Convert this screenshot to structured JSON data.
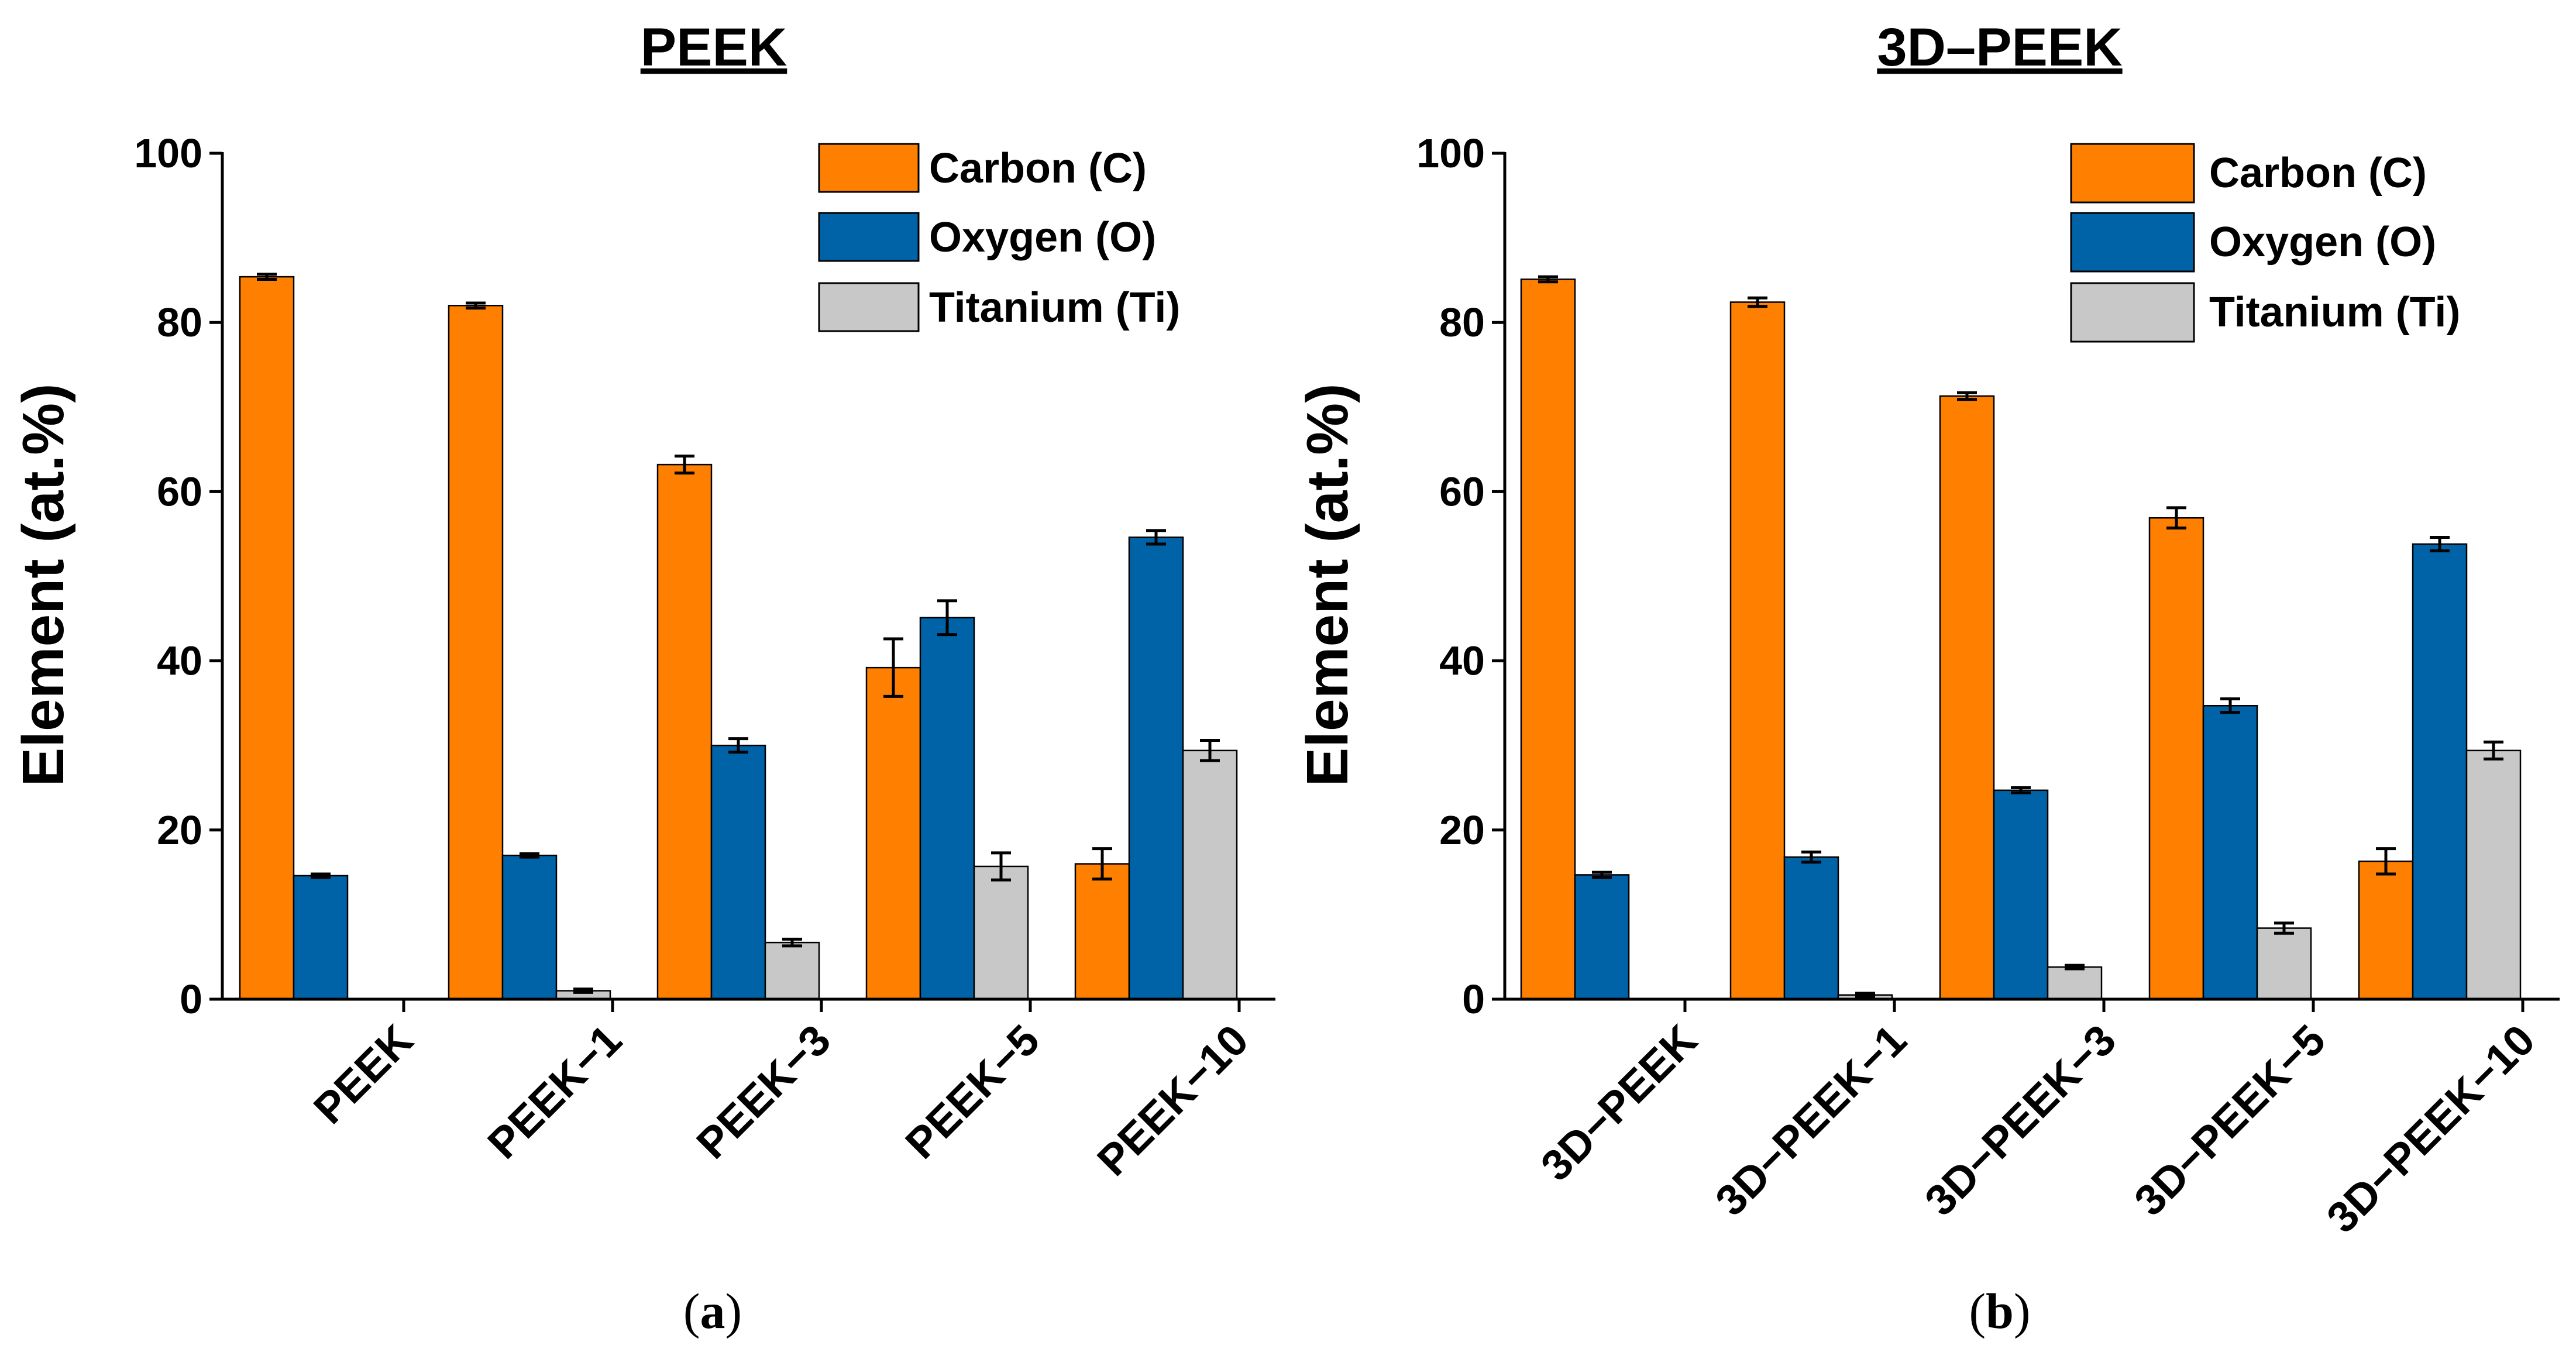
{
  "colors": {
    "carbon": "#FF7F00",
    "oxygen": "#0063A8",
    "titanium": "#C8C8C8"
  },
  "chart_data": [
    {
      "type": "bar",
      "panel": "(a)",
      "panel_letter": "a",
      "title": "PEEK",
      "ylabel": "Element (at.%)",
      "ylim": [
        0,
        100
      ],
      "yticks": [
        0,
        20,
        40,
        60,
        80,
        100
      ],
      "categories": [
        "PEEK",
        "PEEK−1",
        "PEEK−3",
        "PEEK−5",
        "PEEK−10"
      ],
      "legend_position": "top-right",
      "series": [
        {
          "name": "Carbon (C)",
          "color": "#FF7F00",
          "values": [
            85.4,
            82.0,
            63.2,
            39.2,
            16.0
          ],
          "errors": [
            0.3,
            0.3,
            1.0,
            3.4,
            1.8
          ]
        },
        {
          "name": "Oxygen (O)",
          "color": "#0063A8",
          "values": [
            14.6,
            17.0,
            30.0,
            45.1,
            54.6
          ],
          "errors": [
            0.2,
            0.2,
            0.8,
            2.0,
            0.8
          ]
        },
        {
          "name": "Titanium (Ti)",
          "color": "#C8C8C8",
          "values": [
            0,
            1.0,
            6.7,
            15.7,
            29.4
          ],
          "errors": [
            0,
            0.2,
            0.4,
            1.6,
            1.2
          ]
        }
      ]
    },
    {
      "type": "bar",
      "panel": "(b)",
      "panel_letter": "b",
      "title": "3D–PEEK",
      "ylabel": "Element (at.%)",
      "ylim": [
        0,
        100
      ],
      "yticks": [
        0,
        20,
        40,
        60,
        80,
        100
      ],
      "categories": [
        "3D−PEEK",
        "3D−PEEK−1",
        "3D−PEEK−3",
        "3D−PEEK−5",
        "3D−PEEK−10"
      ],
      "legend_position": "top-right",
      "series": [
        {
          "name": "Carbon (C)",
          "color": "#FF7F00",
          "values": [
            85.1,
            82.4,
            71.3,
            56.9,
            16.3
          ],
          "errors": [
            0.3,
            0.5,
            0.4,
            1.2,
            1.5
          ]
        },
        {
          "name": "Oxygen (O)",
          "color": "#0063A8",
          "values": [
            14.7,
            16.8,
            24.7,
            34.7,
            53.8
          ],
          "errors": [
            0.3,
            0.6,
            0.3,
            0.8,
            0.8
          ]
        },
        {
          "name": "Titanium (Ti)",
          "color": "#C8C8C8",
          "values": [
            0,
            0.5,
            3.8,
            8.4,
            29.4
          ],
          "errors": [
            0,
            0.2,
            0.2,
            0.6,
            1.0
          ]
        }
      ]
    }
  ]
}
